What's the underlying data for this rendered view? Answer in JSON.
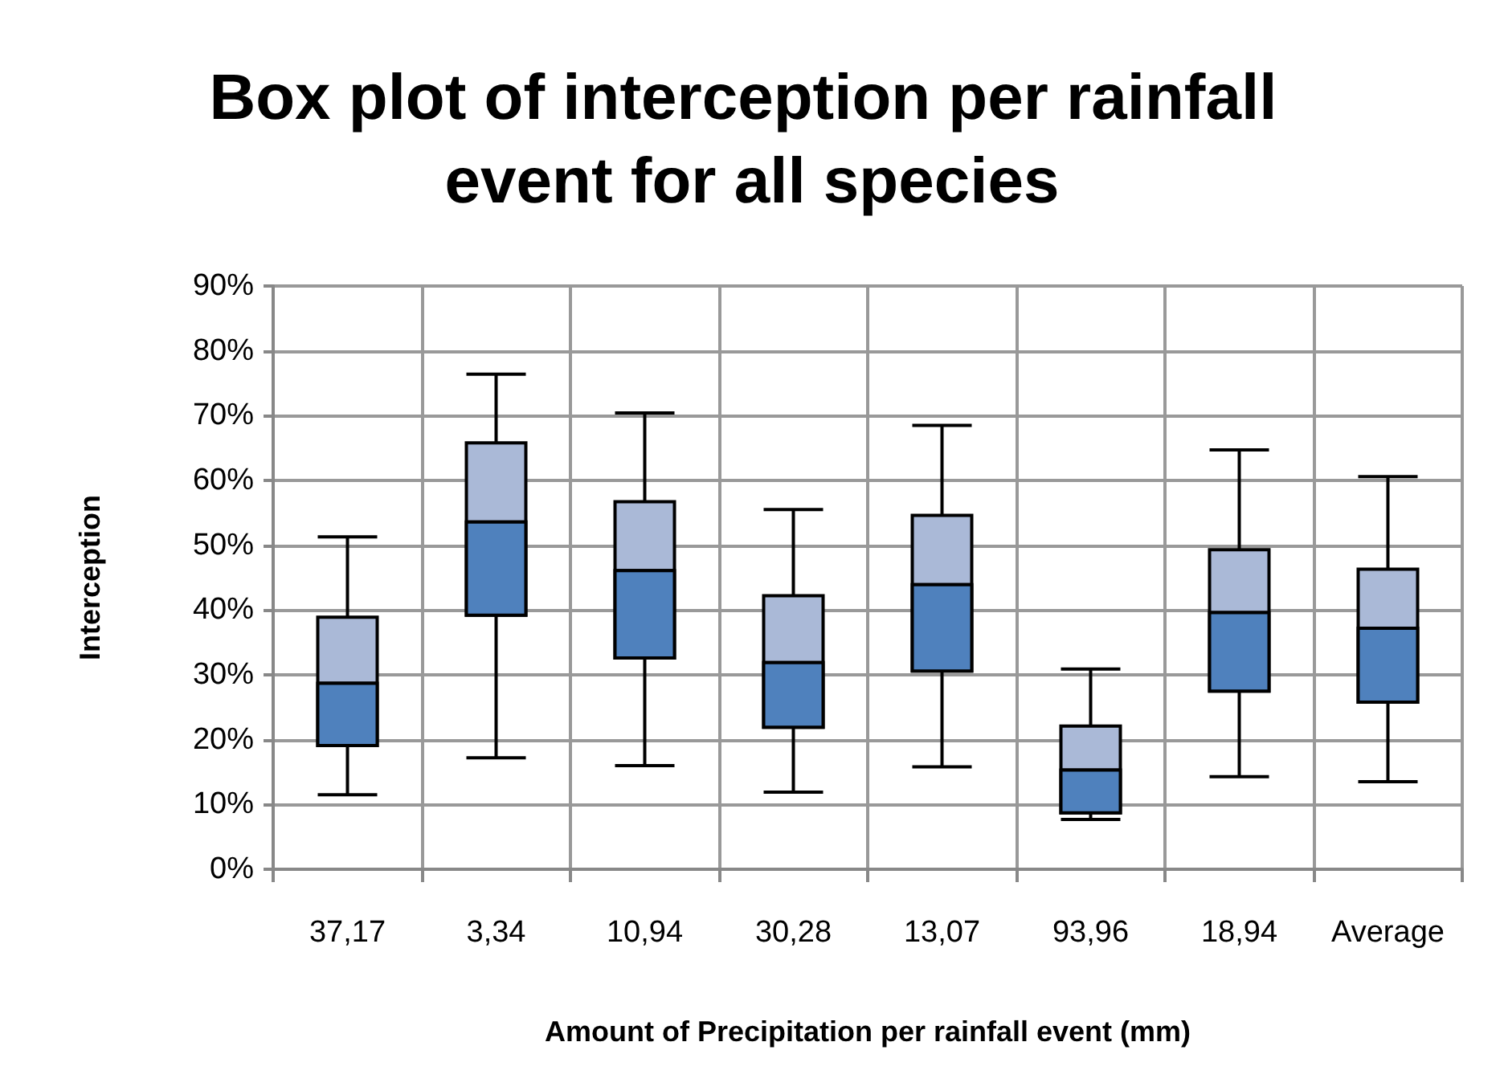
{
  "chart_data": {
    "type": "box",
    "title": "Box plot of interception per rainfall event for all species",
    "xlabel": "Amount of Precipitation per rainfall event (mm)",
    "ylabel": "Interception",
    "categories": [
      "37,17",
      "3,34",
      "10,94",
      "30,28",
      "13,07",
      "93,96",
      "18,94",
      "Average"
    ],
    "series": [
      {
        "color": "#4f81bd",
        "colors": [
          "#aab9d7",
          "#aab9d7",
          "#aab9d7",
          "#aab9d7",
          "#aab9d7",
          "#aab9d7",
          "#aab9d7",
          "#aab9d7"
        ],
        "boxes": [
          {
            "low": 11.5,
            "q1": 19.1,
            "median": 28.7,
            "q3": 38.9,
            "high": 51.3
          },
          {
            "low": 17.2,
            "q1": 39.2,
            "median": 53.6,
            "q3": 65.8,
            "high": 76.4
          },
          {
            "low": 16.0,
            "q1": 32.6,
            "median": 46.1,
            "q3": 56.7,
            "high": 70.4
          },
          {
            "low": 11.9,
            "q1": 21.9,
            "median": 31.9,
            "q3": 42.2,
            "high": 55.5
          },
          {
            "low": 15.8,
            "q1": 30.6,
            "median": 43.9,
            "q3": 54.6,
            "high": 68.5
          },
          {
            "low": 7.7,
            "q1": 8.7,
            "median": 15.3,
            "q3": 22.1,
            "high": 30.9
          },
          {
            "low": 14.3,
            "q1": 27.5,
            "median": 39.6,
            "q3": 49.3,
            "high": 64.7
          },
          {
            "low": 13.5,
            "q1": 25.8,
            "median": 37.2,
            "q3": 46.3,
            "high": 60.6
          }
        ]
      }
    ],
    "ylim": [
      0,
      90
    ],
    "yticks": [
      {
        "value": 0,
        "label": "0%"
      },
      {
        "value": 10,
        "label": "10%"
      },
      {
        "value": 20,
        "label": "20%"
      },
      {
        "value": 30,
        "label": "30%"
      },
      {
        "value": 40,
        "label": "40%"
      },
      {
        "value": 50,
        "label": "50%"
      },
      {
        "value": 60,
        "label": "60%"
      },
      {
        "value": 70,
        "label": "70%"
      },
      {
        "value": 80,
        "label": "80%"
      },
      {
        "value": 90,
        "label": "90%"
      }
    ],
    "grid": true
  }
}
